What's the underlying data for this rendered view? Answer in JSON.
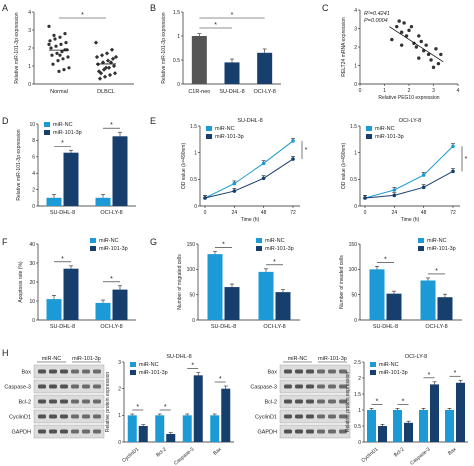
{
  "colors": {
    "nc": "#1b9ad6",
    "mir": "#173f6e",
    "gray": "#555555",
    "blot_bg": "#dcdcdc",
    "band": "#3a3a3a"
  },
  "legend": {
    "nc": "miR-NC",
    "mir": "miR-101-3p",
    "c1": "C1R-neo"
  },
  "chart_data": [
    {
      "id": "A",
      "type": "scatter",
      "panel": "A",
      "ylabel": "Relative miR-101-3p expression",
      "categories": [
        "Normal",
        "DLBCL"
      ],
      "ylim": [
        0,
        4
      ],
      "yticks": [
        0,
        1,
        2,
        3,
        4
      ],
      "sig": "*",
      "points": {
        "Normal": [
          3.2,
          2.8,
          2.6,
          2.5,
          2.4,
          2.3,
          2.2,
          2.1,
          2.0,
          1.9,
          1.8,
          1.7,
          1.6,
          1.5,
          1.4,
          1.3,
          1.1,
          0.9,
          0.8,
          0.7,
          2.7,
          2.2,
          1.9,
          1.6
        ],
        "DLBCL": [
          2.3,
          1.9,
          1.7,
          1.6,
          1.5,
          1.4,
          1.3,
          1.2,
          1.1,
          1.0,
          0.9,
          0.8,
          0.7,
          0.6,
          0.5,
          0.4,
          0.3,
          1.5,
          1.2,
          0.9,
          0.6
        ]
      }
    },
    {
      "id": "B",
      "type": "bar",
      "panel": "B",
      "ylabel": "Relative miR-101-3p expression",
      "categories": [
        "C1R-neo",
        "SU-DHL-8",
        "OCI-LY-8"
      ],
      "values": [
        1.0,
        0.45,
        0.65
      ],
      "errors": [
        0.05,
        0.07,
        0.08
      ],
      "ylim": [
        0,
        1.5
      ],
      "yticks": [
        0,
        0.5,
        1.0,
        1.5
      ],
      "sig": "*"
    },
    {
      "id": "C",
      "type": "scatter",
      "panel": "C",
      "xlabel": "Relative PEG10 expression",
      "ylabel": "RELT24 mRNA expression",
      "xlim": [
        0,
        4
      ],
      "ylim": [
        0,
        4
      ],
      "xticks": [
        0,
        1,
        2,
        3,
        4
      ],
      "yticks": [
        0,
        1,
        2,
        3,
        4
      ],
      "annot1": "R²=0.4241",
      "annot2": "P=0.0004",
      "points": [
        [
          1.3,
          2.4
        ],
        [
          1.5,
          3.1
        ],
        [
          1.6,
          3.4
        ],
        [
          1.7,
          2.8
        ],
        [
          1.8,
          3.3
        ],
        [
          1.9,
          2.6
        ],
        [
          2.0,
          2.9
        ],
        [
          2.1,
          3.1
        ],
        [
          2.2,
          2.2
        ],
        [
          2.3,
          2.0
        ],
        [
          2.4,
          2.6
        ],
        [
          2.5,
          2.3
        ],
        [
          2.6,
          1.8
        ],
        [
          2.7,
          2.1
        ],
        [
          2.8,
          1.6
        ],
        [
          2.9,
          1.3
        ],
        [
          3.0,
          0.9
        ],
        [
          3.1,
          1.9
        ],
        [
          3.2,
          1.1
        ],
        [
          2.4,
          1.4
        ],
        [
          1.7,
          2.1
        ],
        [
          3.3,
          1.6
        ]
      ],
      "fit": [
        [
          1.2,
          3.1
        ],
        [
          3.4,
          1.2
        ]
      ]
    },
    {
      "id": "D",
      "type": "bar",
      "panel": "D",
      "ylabel": "Relative miR-101-3p expression",
      "categories": [
        "SU-DHL-8",
        "OCI-LY-8"
      ],
      "series": [
        {
          "name": "miR-NC",
          "values": [
            1.0,
            1.0
          ],
          "errors": [
            0.4,
            0.4
          ]
        },
        {
          "name": "miR-101-3p",
          "values": [
            6.5,
            8.5
          ],
          "errors": [
            0.3,
            0.5
          ]
        }
      ],
      "ylim": [
        0,
        10
      ],
      "yticks": [
        0,
        2,
        4,
        6,
        8,
        10
      ],
      "sig": "*"
    },
    {
      "id": "E1",
      "type": "line",
      "panel": "E",
      "title": "SU-DHL-8",
      "xlabel": "Time (h)",
      "ylabel": "OD value (λ=490nm)",
      "x": [
        0,
        24,
        48,
        72
      ],
      "ylim": [
        0,
        1.5
      ],
      "yticks": [
        0,
        0.5,
        1.0,
        1.5
      ],
      "series": [
        {
          "name": "miR-NC",
          "values": [
            0.15,
            0.42,
            0.8,
            1.22
          ]
        },
        {
          "name": "miR-101-3p",
          "values": [
            0.15,
            0.28,
            0.52,
            0.88
          ]
        }
      ],
      "sig": "*"
    },
    {
      "id": "E2",
      "type": "line",
      "panel": "E",
      "title": "OCI-LY-8",
      "xlabel": "Time (h)",
      "ylabel": "OD value (λ=490nm)",
      "x": [
        0,
        24,
        48,
        72
      ],
      "ylim": [
        0,
        1.5
      ],
      "yticks": [
        0,
        0.5,
        1.0,
        1.5
      ],
      "series": [
        {
          "name": "miR-NC",
          "values": [
            0.15,
            0.3,
            0.58,
            1.12
          ]
        },
        {
          "name": "miR-101-3p",
          "values": [
            0.15,
            0.2,
            0.35,
            0.65
          ]
        }
      ],
      "sig": "*"
    },
    {
      "id": "F",
      "type": "bar",
      "panel": "F",
      "ylabel": "Apoptosis rate (%)",
      "categories": [
        "SU-DHL-8",
        "OCI-LY-8"
      ],
      "series": [
        {
          "name": "miR-NC",
          "values": [
            11,
            9
          ],
          "errors": [
            2,
            1.5
          ]
        },
        {
          "name": "miR-101-3p",
          "values": [
            27,
            16
          ],
          "errors": [
            1.5,
            2
          ]
        }
      ],
      "ylim": [
        0,
        40
      ],
      "yticks": [
        0,
        10,
        20,
        30,
        40
      ],
      "sig": "*"
    },
    {
      "id": "G1",
      "type": "bar",
      "panel": "G",
      "ylabel": "Number of migrated cells",
      "categories": [
        "SU-DHL-8",
        "OCI-LY-8"
      ],
      "series": [
        {
          "name": "miR-NC",
          "values": [
            130,
            95
          ],
          "errors": [
            5,
            6
          ]
        },
        {
          "name": "miR-101-3p",
          "values": [
            65,
            55
          ],
          "errors": [
            6,
            5
          ]
        }
      ],
      "ylim": [
        0,
        150
      ],
      "yticks": [
        0,
        50,
        100,
        150
      ],
      "sig": "*"
    },
    {
      "id": "G2",
      "type": "bar",
      "panel": "G",
      "ylabel": "Number of invaded cells",
      "categories": [
        "SU-DHL-8",
        "OCI-LY-8"
      ],
      "series": [
        {
          "name": "miR-NC",
          "values": [
            100,
            78
          ],
          "errors": [
            6,
            5
          ]
        },
        {
          "name": "miR-101-3p",
          "values": [
            52,
            45
          ],
          "errors": [
            5,
            6
          ]
        }
      ],
      "ylim": [
        0,
        150
      ],
      "yticks": [
        0,
        50,
        100,
        150
      ],
      "sig": "*"
    },
    {
      "id": "H1",
      "type": "bar",
      "panel": "H",
      "title": "SU-DHL-8",
      "ylabel": "Relative protein expression",
      "categories": [
        "CyclinD1",
        "Bcl-2",
        "Caspase-3",
        "Bax"
      ],
      "series": [
        {
          "name": "miR-NC",
          "values": [
            1.0,
            1.0,
            1.0,
            1.0
          ],
          "errors": [
            0.05,
            0.05,
            0.05,
            0.05
          ]
        },
        {
          "name": "miR-101-3p",
          "values": [
            0.6,
            0.3,
            2.5,
            2.0
          ],
          "errors": [
            0.05,
            0.05,
            0.1,
            0.1
          ]
        }
      ],
      "ylim": [
        0,
        3
      ],
      "yticks": [
        0,
        1,
        2,
        3
      ],
      "sig": "*"
    },
    {
      "id": "H2",
      "type": "bar",
      "panel": "H",
      "title": "OCI-LY-8",
      "ylabel": "Relative protein expression",
      "categories": [
        "CyclinD1",
        "Bcl-2",
        "Caspase-3",
        "Bax"
      ],
      "series": [
        {
          "name": "miR-NC",
          "values": [
            1.0,
            1.0,
            1.0,
            1.0
          ],
          "errors": [
            0.05,
            0.05,
            0.05,
            0.05
          ]
        },
        {
          "name": "miR-101-3p",
          "values": [
            0.5,
            0.6,
            1.8,
            1.85
          ],
          "errors": [
            0.05,
            0.05,
            0.08,
            0.08
          ]
        }
      ],
      "ylim": [
        0,
        2.5
      ],
      "yticks": [
        0,
        0.5,
        1.0,
        1.5,
        2.0,
        2.5
      ],
      "sig": "*"
    }
  ],
  "blots": [
    {
      "id": "blot1",
      "header": [
        "miR-NC",
        "miR-101-3p"
      ],
      "rows": [
        "Bax",
        "Caspase-3",
        "Bcl-2",
        "CyclinD1",
        "GAPDH"
      ]
    },
    {
      "id": "blot2",
      "header": [
        "miR-NC",
        "miR-101-3p"
      ],
      "rows": [
        "Bax",
        "Caspase-3",
        "Bcl-2",
        "CyclinD1",
        "GAPDH"
      ]
    }
  ]
}
